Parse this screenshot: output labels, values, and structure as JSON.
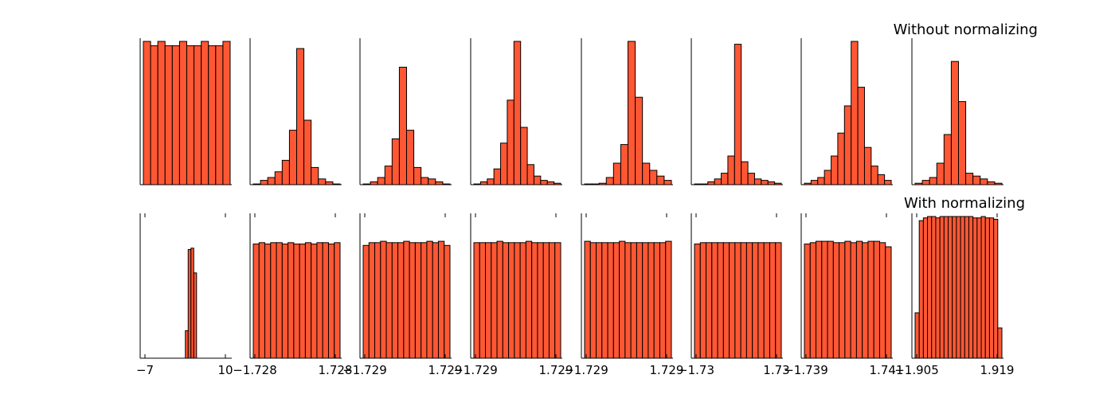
{
  "chart_data": {
    "type": "bar",
    "layout": "2 rows x 8 columns of histograms",
    "bar_color": "#FF5733",
    "edge_color": "#000000",
    "rows": [
      {
        "title": "Without normalizing",
        "panels": [
          {
            "values": [
              100,
              97,
              100,
              97,
              97,
              100,
              97,
              97,
              100,
              97,
              97,
              100
            ]
          },
          {
            "values": [
              0.5,
              3,
              5,
              9,
              17,
              38,
              95,
              45,
              12,
              4,
              2,
              0.5
            ]
          },
          {
            "values": [
              0.5,
              2,
              5,
              13,
              32,
              82,
              38,
              12,
              5,
              4,
              2,
              0.5
            ]
          },
          {
            "values": [
              0.5,
              2,
              4,
              11,
              29,
              59,
              100,
              40,
              14,
              6,
              3,
              2,
              1
            ]
          },
          {
            "values": [
              0.5,
              0.5,
              1,
              5,
              15,
              28,
              100,
              61,
              15,
              10,
              6,
              3
            ]
          },
          {
            "values": [
              0.5,
              0.5,
              2,
              4,
              8,
              20,
              98,
              16,
              8,
              4,
              3,
              2,
              1
            ]
          },
          {
            "values": [
              1,
              3,
              5,
              10,
              20,
              36,
              55,
              100,
              68,
              26,
              13,
              7,
              3
            ]
          },
          {
            "values": [
              1,
              3,
              5,
              15,
              35,
              86,
              58,
              8,
              6,
              4,
              2,
              1
            ]
          }
        ]
      },
      {
        "title": "With normalizing",
        "panels": [
          {
            "values": [
              0,
              0,
              0,
              0,
              0,
              0,
              0,
              0,
              0,
              0,
              0,
              0,
              0,
              0,
              0,
              20,
              79,
              80,
              62,
              0,
              0,
              0,
              0,
              0,
              0,
              0,
              0,
              0,
              0,
              0,
              0
            ],
            "x_ticks": [
              "−7",
              "10"
            ]
          },
          {
            "values": [
              83,
              84,
              83,
              84,
              84,
              83,
              84,
              83,
              83,
              84,
              83,
              84,
              84,
              83,
              84
            ],
            "x_ticks": [
              "−1.728",
              "1.728"
            ]
          },
          {
            "values": [
              82,
              84,
              84,
              85,
              84,
              84,
              84,
              85,
              84,
              84,
              84,
              85,
              84,
              85,
              82
            ],
            "x_ticks": [
              "−1.729",
              "1.729"
            ]
          },
          {
            "values": [
              84,
              84,
              84,
              84,
              85,
              84,
              84,
              84,
              84,
              85,
              84,
              84,
              84,
              84,
              84
            ],
            "x_ticks": [
              "−1.729",
              "1.729"
            ]
          },
          {
            "values": [
              85,
              84,
              84,
              84,
              84,
              84,
              85,
              84,
              84,
              84,
              84,
              84,
              84,
              84,
              85
            ],
            "x_ticks": [
              "−1.729",
              "1.729"
            ]
          },
          {
            "values": [
              83,
              84,
              84,
              84,
              84,
              84,
              84,
              84,
              84,
              84,
              84,
              84,
              84,
              84,
              84
            ],
            "x_ticks": [
              "−1.73",
              "1.73"
            ]
          },
          {
            "values": [
              83,
              84,
              85,
              85,
              85,
              84,
              84,
              85,
              84,
              85,
              84,
              85,
              85,
              84,
              81
            ],
            "x_ticks": [
              "−1.739",
              "1.741"
            ]
          },
          {
            "values": [
              33,
              100,
              102,
              103,
              103,
              102,
              103,
              103,
              103,
              103,
              103,
              103,
              103,
              103,
              102,
              102,
              103,
              102,
              102,
              101,
              22
            ],
            "x_ticks": [
              "−1.905",
              "1.919"
            ]
          }
        ]
      }
    ]
  }
}
